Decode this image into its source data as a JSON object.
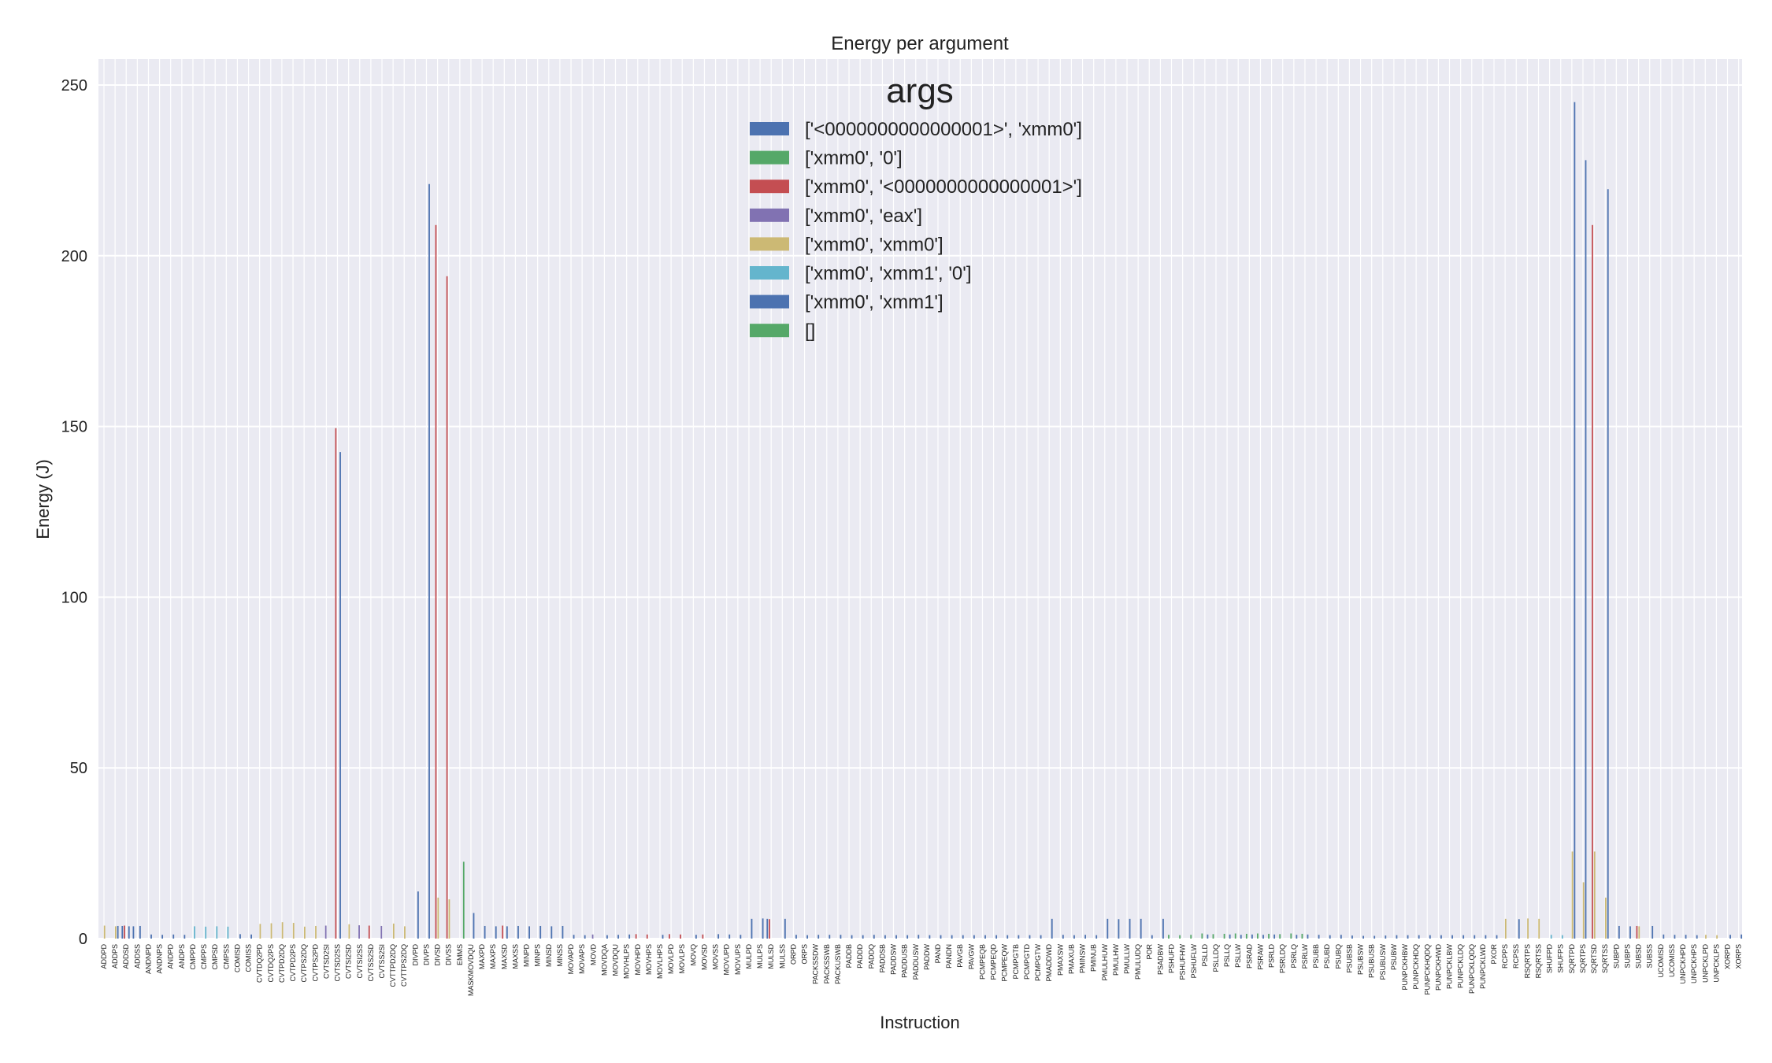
{
  "chart_data": {
    "type": "bar",
    "title": "Energy per argument",
    "xlabel": "Instruction",
    "ylabel": "Energy (J)",
    "ylim": [
      0,
      260
    ],
    "yticks": [
      0,
      50,
      100,
      150,
      200,
      250
    ],
    "grid": true,
    "legend_title": "args",
    "legend_position": "top-center",
    "series": [
      {
        "name": "['<0000000000000001>', 'xmm0']",
        "color": "#4c72b0"
      },
      {
        "name": "['xmm0', '0']",
        "color": "#55a868"
      },
      {
        "name": "['xmm0', '<0000000000000001>']",
        "color": "#c44e52"
      },
      {
        "name": "['xmm0', 'eax']",
        "color": "#8172b2"
      },
      {
        "name": "['xmm0', 'xmm0']",
        "color": "#ccb974"
      },
      {
        "name": "['xmm0', 'xmm1', '0']",
        "color": "#64b5cd"
      },
      {
        "name": "['xmm0', 'xmm1']",
        "color": "#4c72b0"
      },
      {
        "name": "[]",
        "color": "#55a868"
      }
    ],
    "categories": [
      "ADDPD",
      "ADDPS",
      "ADDSD",
      "ADDSS",
      "ANDNPD",
      "ANDNPS",
      "ANDPD",
      "ANDPS",
      "CMPPD",
      "CMPPS",
      "CMPSD",
      "CMPSS",
      "COMISD",
      "COMISS",
      "CVTDQ2PD",
      "CVTDQ2PS",
      "CVTPD2DQ",
      "CVTPD2PS",
      "CVTPS2DQ",
      "CVTPS2PD",
      "CVTSD2SI",
      "CVTSD2SS",
      "CVTSI2SD",
      "CVTSI2SS",
      "CVTSS2SD",
      "CVTSS2SI",
      "CVTTPD2DQ",
      "CVTTPS2DQ",
      "DIVPD",
      "DIVPS",
      "DIVSD",
      "DIVSS",
      "EMMS",
      "MASKMOVDQU",
      "MAXPD",
      "MAXPS",
      "MAXSD",
      "MAXSS",
      "MINPD",
      "MINPS",
      "MINSD",
      "MINSS",
      "MOVAPD",
      "MOVAPS",
      "MOVD",
      "MOVDQA",
      "MOVDQU",
      "MOVHLPS",
      "MOVHPD",
      "MOVHPS",
      "MOVLHPS",
      "MOVLPD",
      "MOVLPS",
      "MOVQ",
      "MOVSD",
      "MOVSS",
      "MOVUPD",
      "MOVUPS",
      "MULPD",
      "MULPS",
      "MULSD",
      "MULSS",
      "ORPD",
      "ORPS",
      "PACKSSDW",
      "PACKSSWB",
      "PACKUSWB",
      "PADDB",
      "PADDD",
      "PADDQ",
      "PADDSB",
      "PADDSW",
      "PADDUSB",
      "PADDUSW",
      "PADDW",
      "PAND",
      "PANDN",
      "PAVGB",
      "PAVGW",
      "PCMPEQB",
      "PCMPEQD",
      "PCMPEQW",
      "PCMPGTB",
      "PCMPGTD",
      "PCMPGTW",
      "PMADDWD",
      "PMAXSW",
      "PMAXUB",
      "PMINSW",
      "PMINUB",
      "PMULHUW",
      "PMULHW",
      "PMULLW",
      "PMULUDQ",
      "POR",
      "PSADBW",
      "PSHUFD",
      "PSHUFHW",
      "PSHUFLW",
      "PSLLD",
      "PSLLDQ",
      "PSLLQ",
      "PSLLW",
      "PSRAD",
      "PSRAW",
      "PSRLD",
      "PSRLDQ",
      "PSRLQ",
      "PSRLW",
      "PSUBB",
      "PSUBD",
      "PSUBQ",
      "PSUBSB",
      "PSUBSW",
      "PSUBUSB",
      "PSUBUSW",
      "PSUBW",
      "PUNPCKHBW",
      "PUNPCKHDQ",
      "PUNPCKHQDQ",
      "PUNPCKHWD",
      "PUNPCKLBW",
      "PUNPCKLDQ",
      "PUNPCKLQDQ",
      "PUNPCKLWD",
      "PXOR",
      "RCPPS",
      "RCPSS",
      "RSQRTPS",
      "RSQRTSS",
      "SHUFPD",
      "SHUFPS",
      "SQRTPD",
      "SQRTPS",
      "SQRTSD",
      "SQRTSS",
      "SUBPD",
      "SUBPS",
      "SUBSD",
      "SUBSS",
      "UCOMISD",
      "UCOMISS",
      "UNPCKHPD",
      "UNPCKHPS",
      "UNPCKLPD",
      "UNPCKLPS",
      "XORPD",
      "XORPS"
    ],
    "bars": [
      {
        "category": "ADDPD",
        "series": 4,
        "value": 3.8
      },
      {
        "category": "ADDPS",
        "series": 4,
        "value": 3.6
      },
      {
        "category": "ADDPS",
        "series": 6,
        "value": 3.7
      },
      {
        "category": "ADDSD",
        "series": 0,
        "value": 3.7
      },
      {
        "category": "ADDSD",
        "series": 2,
        "value": 3.8
      },
      {
        "category": "ADDSD",
        "series": 6,
        "value": 3.6
      },
      {
        "category": "ADDSS",
        "series": 0,
        "value": 3.6
      },
      {
        "category": "ADDSS",
        "series": 6,
        "value": 3.7
      },
      {
        "category": "ANDNPD",
        "series": 6,
        "value": 1.2
      },
      {
        "category": "ANDNPS",
        "series": 6,
        "value": 1.1
      },
      {
        "category": "ANDPD",
        "series": 6,
        "value": 1.2
      },
      {
        "category": "ANDPS",
        "series": 6,
        "value": 1.1
      },
      {
        "category": "CMPPD",
        "series": 5,
        "value": 3.6
      },
      {
        "category": "CMPPS",
        "series": 5,
        "value": 3.5
      },
      {
        "category": "CMPSD",
        "series": 5,
        "value": 3.6
      },
      {
        "category": "CMPSS",
        "series": 5,
        "value": 3.5
      },
      {
        "category": "COMISD",
        "series": 6,
        "value": 1.3
      },
      {
        "category": "COMISS",
        "series": 6,
        "value": 1.2
      },
      {
        "category": "CVTDQ2PD",
        "series": 4,
        "value": 4.3
      },
      {
        "category": "CVTDQ2PS",
        "series": 4,
        "value": 4.5
      },
      {
        "category": "CVTPD2DQ",
        "series": 4,
        "value": 4.8
      },
      {
        "category": "CVTPD2PS",
        "series": 4,
        "value": 4.6
      },
      {
        "category": "CVTPS2DQ",
        "series": 4,
        "value": 3.5
      },
      {
        "category": "CVTPS2PD",
        "series": 4,
        "value": 3.7
      },
      {
        "category": "CVTSD2SI",
        "series": 3,
        "value": 3.8
      },
      {
        "category": "CVTSD2SS",
        "series": 2,
        "value": 149.5
      },
      {
        "category": "CVTSD2SS",
        "series": 6,
        "value": 142.5
      },
      {
        "category": "CVTSI2SD",
        "series": 4,
        "value": 4.2
      },
      {
        "category": "CVTSI2SS",
        "series": 3,
        "value": 3.9
      },
      {
        "category": "CVTSS2SD",
        "series": 2,
        "value": 3.8
      },
      {
        "category": "CVTSS2SI",
        "series": 3,
        "value": 3.7
      },
      {
        "category": "CVTTPD2DQ",
        "series": 4,
        "value": 4.4
      },
      {
        "category": "CVTTPS2DQ",
        "series": 4,
        "value": 3.6
      },
      {
        "category": "DIVPD",
        "series": 6,
        "value": 13.8
      },
      {
        "category": "DIVPS",
        "series": 6,
        "value": 221.0
      },
      {
        "category": "DIVSD",
        "series": 2,
        "value": 209.0
      },
      {
        "category": "DIVSD",
        "series": 4,
        "value": 12.0
      },
      {
        "category": "DIVSS",
        "series": 2,
        "value": 194.0
      },
      {
        "category": "DIVSS",
        "series": 4,
        "value": 11.5
      },
      {
        "category": "EMMS",
        "series": 7,
        "value": 22.5
      },
      {
        "category": "MASKMOVDQU",
        "series": 6,
        "value": 7.5
      },
      {
        "category": "MAXPD",
        "series": 6,
        "value": 3.7
      },
      {
        "category": "MAXPS",
        "series": 6,
        "value": 3.6
      },
      {
        "category": "MAXSD",
        "series": 2,
        "value": 3.8
      },
      {
        "category": "MAXSD",
        "series": 6,
        "value": 3.6
      },
      {
        "category": "MAXSS",
        "series": 6,
        "value": 3.7
      },
      {
        "category": "MINPD",
        "series": 6,
        "value": 3.6
      },
      {
        "category": "MINPS",
        "series": 6,
        "value": 3.7
      },
      {
        "category": "MINSD",
        "series": 6,
        "value": 3.6
      },
      {
        "category": "MINSS",
        "series": 6,
        "value": 3.7
      },
      {
        "category": "MOVAPD",
        "series": 6,
        "value": 1.1
      },
      {
        "category": "MOVAPS",
        "series": 6,
        "value": 1.0
      },
      {
        "category": "MOVD",
        "series": 3,
        "value": 1.2
      },
      {
        "category": "MOVDQA",
        "series": 6,
        "value": 1.0
      },
      {
        "category": "MOVDQU",
        "series": 6,
        "value": 1.1
      },
      {
        "category": "MOVHLPS",
        "series": 6,
        "value": 1.2
      },
      {
        "category": "MOVHPD",
        "series": 2,
        "value": 1.3
      },
      {
        "category": "MOVHPS",
        "series": 2,
        "value": 1.2
      },
      {
        "category": "MOVLHPS",
        "series": 6,
        "value": 1.1
      },
      {
        "category": "MOVLPD",
        "series": 2,
        "value": 1.3
      },
      {
        "category": "MOVLPS",
        "series": 2,
        "value": 1.2
      },
      {
        "category": "MOVQ",
        "series": 6,
        "value": 1.1
      },
      {
        "category": "MOVSD",
        "series": 2,
        "value": 1.2
      },
      {
        "category": "MOVSS",
        "series": 6,
        "value": 1.3
      },
      {
        "category": "MOVUPD",
        "series": 6,
        "value": 1.2
      },
      {
        "category": "MOVUPS",
        "series": 6,
        "value": 1.1
      },
      {
        "category": "MULPD",
        "series": 6,
        "value": 5.8
      },
      {
        "category": "MULPS",
        "series": 6,
        "value": 5.9
      },
      {
        "category": "MULSD",
        "series": 0,
        "value": 5.8
      },
      {
        "category": "MULSD",
        "series": 2,
        "value": 5.7
      },
      {
        "category": "MULSS",
        "series": 6,
        "value": 5.8
      },
      {
        "category": "ORPD",
        "series": 6,
        "value": 1.1
      },
      {
        "category": "ORPS",
        "series": 6,
        "value": 1.0
      },
      {
        "category": "PACKSSDW",
        "series": 6,
        "value": 1.1
      },
      {
        "category": "PACKSSWB",
        "series": 6,
        "value": 1.1
      },
      {
        "category": "PACKUSWB",
        "series": 6,
        "value": 1.1
      },
      {
        "category": "PADDB",
        "series": 6,
        "value": 1.0
      },
      {
        "category": "PADDD",
        "series": 6,
        "value": 1.0
      },
      {
        "category": "PADDQ",
        "series": 6,
        "value": 1.1
      },
      {
        "category": "PADDSB",
        "series": 6,
        "value": 1.0
      },
      {
        "category": "PADDSW",
        "series": 6,
        "value": 1.0
      },
      {
        "category": "PADDUSB",
        "series": 6,
        "value": 1.0
      },
      {
        "category": "PADDUSW",
        "series": 6,
        "value": 1.1
      },
      {
        "category": "PADDW",
        "series": 6,
        "value": 1.0
      },
      {
        "category": "PAND",
        "series": 6,
        "value": 1.0
      },
      {
        "category": "PANDN",
        "series": 6,
        "value": 1.0
      },
      {
        "category": "PAVGB",
        "series": 6,
        "value": 1.0
      },
      {
        "category": "PAVGW",
        "series": 6,
        "value": 1.0
      },
      {
        "category": "PCMPEQB",
        "series": 6,
        "value": 1.0
      },
      {
        "category": "PCMPEQD",
        "series": 6,
        "value": 1.0
      },
      {
        "category": "PCMPEQW",
        "series": 6,
        "value": 1.0
      },
      {
        "category": "PCMPGTB",
        "series": 6,
        "value": 1.0
      },
      {
        "category": "PCMPGTD",
        "series": 6,
        "value": 1.0
      },
      {
        "category": "PCMPGTW",
        "series": 6,
        "value": 1.0
      },
      {
        "category": "PMADDWD",
        "series": 6,
        "value": 5.8
      },
      {
        "category": "PMAXSW",
        "series": 6,
        "value": 1.1
      },
      {
        "category": "PMAXUB",
        "series": 6,
        "value": 1.0
      },
      {
        "category": "PMINSW",
        "series": 6,
        "value": 1.1
      },
      {
        "category": "PMINUB",
        "series": 6,
        "value": 1.0
      },
      {
        "category": "PMULHUW",
        "series": 6,
        "value": 5.8
      },
      {
        "category": "PMULHW",
        "series": 6,
        "value": 5.7
      },
      {
        "category": "PMULLW",
        "series": 6,
        "value": 5.8
      },
      {
        "category": "PMULUDQ",
        "series": 6,
        "value": 5.8
      },
      {
        "category": "POR",
        "series": 6,
        "value": 1.0
      },
      {
        "category": "PSADBW",
        "series": 6,
        "value": 5.8
      },
      {
        "category": "PSHUFD",
        "series": 1,
        "value": 1.1
      },
      {
        "category": "PSHUFHW",
        "series": 1,
        "value": 1.0
      },
      {
        "category": "PSHUFLW",
        "series": 1,
        "value": 1.1
      },
      {
        "category": "PSLLD",
        "series": 1,
        "value": 1.5
      },
      {
        "category": "PSLLD",
        "series": 6,
        "value": 1.2
      },
      {
        "category": "PSLLDQ",
        "series": 1,
        "value": 1.3
      },
      {
        "category": "PSLLQ",
        "series": 1,
        "value": 1.4
      },
      {
        "category": "PSLLQ",
        "series": 6,
        "value": 1.2
      },
      {
        "category": "PSLLW",
        "series": 1,
        "value": 1.5
      },
      {
        "category": "PSLLW",
        "series": 6,
        "value": 1.1
      },
      {
        "category": "PSRAD",
        "series": 1,
        "value": 1.4
      },
      {
        "category": "PSRAD",
        "series": 6,
        "value": 1.2
      },
      {
        "category": "PSRAW",
        "series": 1,
        "value": 1.5
      },
      {
        "category": "PSRAW",
        "series": 6,
        "value": 1.1
      },
      {
        "category": "PSRLD",
        "series": 1,
        "value": 1.4
      },
      {
        "category": "PSRLD",
        "series": 6,
        "value": 1.2
      },
      {
        "category": "PSRLDQ",
        "series": 1,
        "value": 1.3
      },
      {
        "category": "PSRLQ",
        "series": 1,
        "value": 1.5
      },
      {
        "category": "PSRLQ",
        "series": 6,
        "value": 1.1
      },
      {
        "category": "PSRLW",
        "series": 1,
        "value": 1.4
      },
      {
        "category": "PSRLW",
        "series": 6,
        "value": 1.2
      },
      {
        "category": "PSUBB",
        "series": 6,
        "value": 1.1
      },
      {
        "category": "PSUBD",
        "series": 6,
        "value": 1.0
      },
      {
        "category": "PSUBQ",
        "series": 6,
        "value": 1.1
      },
      {
        "category": "PSUBSB",
        "series": 6,
        "value": 0.9
      },
      {
        "category": "PSUBSW",
        "series": 6,
        "value": 0.8
      },
      {
        "category": "PSUBUSB",
        "series": 6,
        "value": 0.8
      },
      {
        "category": "PSUBUSW",
        "series": 6,
        "value": 0.9
      },
      {
        "category": "PSUBW",
        "series": 6,
        "value": 1.0
      },
      {
        "category": "PUNPCKHBW",
        "series": 6,
        "value": 1.0
      },
      {
        "category": "PUNPCKHDQ",
        "series": 6,
        "value": 1.0
      },
      {
        "category": "PUNPCKHQDQ",
        "series": 6,
        "value": 1.0
      },
      {
        "category": "PUNPCKHWD",
        "series": 6,
        "value": 1.0
      },
      {
        "category": "PUNPCKLBW",
        "series": 6,
        "value": 1.0
      },
      {
        "category": "PUNPCKLDQ",
        "series": 6,
        "value": 1.0
      },
      {
        "category": "PUNPCKLQDQ",
        "series": 6,
        "value": 1.0
      },
      {
        "category": "PUNPCKLWD",
        "series": 6,
        "value": 1.0
      },
      {
        "category": "PXOR",
        "series": 6,
        "value": 1.0
      },
      {
        "category": "RCPPS",
        "series": 4,
        "value": 5.8
      },
      {
        "category": "RCPSS",
        "series": 6,
        "value": 5.7
      },
      {
        "category": "RSQRTPS",
        "series": 4,
        "value": 5.9
      },
      {
        "category": "RSQRTSS",
        "series": 4,
        "value": 5.8
      },
      {
        "category": "SHUFPD",
        "series": 5,
        "value": 1.1
      },
      {
        "category": "SHUFPS",
        "series": 5,
        "value": 1.0
      },
      {
        "category": "SQRTPD",
        "series": 4,
        "value": 25.5
      },
      {
        "category": "SQRTPD",
        "series": 6,
        "value": 245.0
      },
      {
        "category": "SQRTPS",
        "series": 6,
        "value": 228.0
      },
      {
        "category": "SQRTPS",
        "series": 4,
        "value": 16.5
      },
      {
        "category": "SQRTSD",
        "series": 2,
        "value": 209.0
      },
      {
        "category": "SQRTSD",
        "series": 4,
        "value": 25.5
      },
      {
        "category": "SQRTSS",
        "series": 6,
        "value": 219.5
      },
      {
        "category": "SQRTSS",
        "series": 4,
        "value": 12.0
      },
      {
        "category": "SUBPD",
        "series": 6,
        "value": 3.7
      },
      {
        "category": "SUBPS",
        "series": 6,
        "value": 3.6
      },
      {
        "category": "SUBSD",
        "series": 2,
        "value": 3.7
      },
      {
        "category": "SUBSD",
        "series": 4,
        "value": 3.6
      },
      {
        "category": "SUBSS",
        "series": 6,
        "value": 3.7
      },
      {
        "category": "UCOMISD",
        "series": 6,
        "value": 1.2
      },
      {
        "category": "UCOMISS",
        "series": 6,
        "value": 1.1
      },
      {
        "category": "UNPCKHPD",
        "series": 6,
        "value": 1.1
      },
      {
        "category": "UNPCKHPS",
        "series": 6,
        "value": 1.0
      },
      {
        "category": "UNPCKLPD",
        "series": 4,
        "value": 1.1
      },
      {
        "category": "UNPCKLPS",
        "series": 4,
        "value": 1.0
      },
      {
        "category": "XORPD",
        "series": 6,
        "value": 1.1
      },
      {
        "category": "XORPS",
        "series": 6,
        "value": 1.2
      }
    ]
  }
}
